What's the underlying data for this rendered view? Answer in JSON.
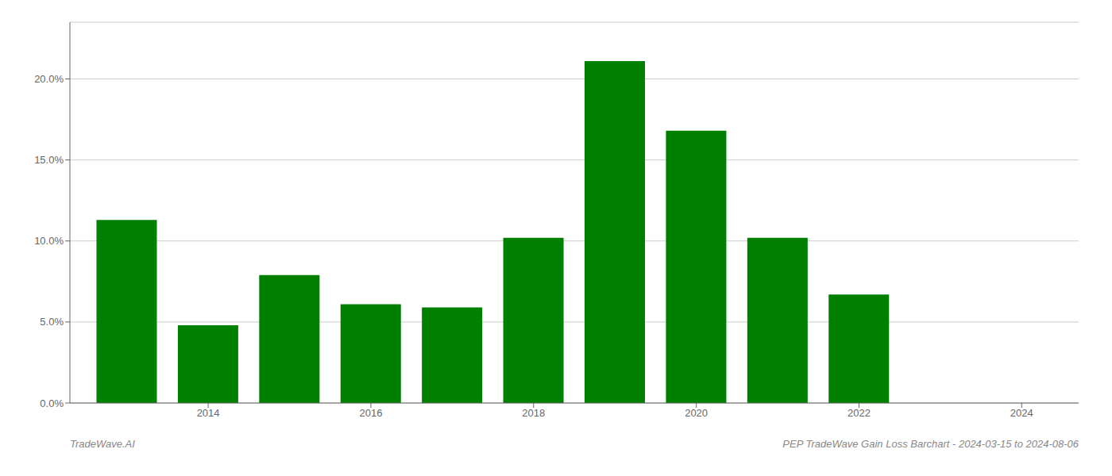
{
  "chart_data": {
    "type": "bar",
    "x": [
      2013,
      2014,
      2015,
      2016,
      2017,
      2018,
      2019,
      2020,
      2021,
      2022,
      2023
    ],
    "values": [
      0.113,
      0.048,
      0.079,
      0.061,
      0.059,
      0.102,
      0.211,
      0.168,
      0.102,
      0.067,
      0.0
    ],
    "color": "#008000",
    "xlim": [
      2012.3,
      2024.7
    ],
    "xticks": [
      2014,
      2016,
      2018,
      2020,
      2022,
      2024
    ],
    "ylim": [
      0,
      0.235
    ],
    "yticks": [
      {
        "value": 0.0,
        "label": "0.0%"
      },
      {
        "value": 0.05,
        "label": "5.0%"
      },
      {
        "value": 0.1,
        "label": "10.0%"
      },
      {
        "value": 0.15,
        "label": "15.0%"
      },
      {
        "value": 0.2,
        "label": "20.0%"
      }
    ],
    "grid": true,
    "annotations": [
      "TradeWave.AI",
      "PEP TradeWave Gain Loss Barchart - 2024-03-15 to 2024-08-06"
    ]
  }
}
